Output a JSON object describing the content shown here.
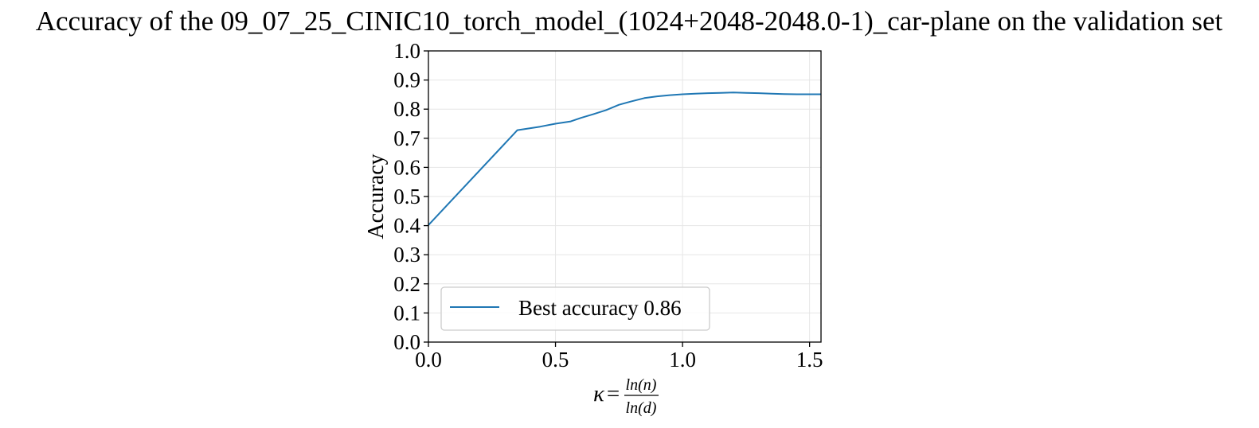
{
  "chart_data": {
    "type": "line",
    "title": "Accuracy of the 09_07_25_CINIC10_torch_model_(1024+2048-2048.0-1)_car-plane on the validation set",
    "xlabel": {
      "symbol": "κ",
      "equals": "=",
      "numerator": "ln(n)",
      "denominator": "ln(d)"
    },
    "ylabel": "Accuracy",
    "xlim": [
      0.0,
      1.545
    ],
    "ylim": [
      0.0,
      1.0
    ],
    "xticks": [
      0.0,
      0.5,
      1.0,
      1.5
    ],
    "xtick_labels": [
      "0.0",
      "0.5",
      "1.0",
      "1.5"
    ],
    "yticks": [
      0.0,
      0.1,
      0.2,
      0.3,
      0.4,
      0.5,
      0.6,
      0.7,
      0.8,
      0.9,
      1.0
    ],
    "ytick_labels": [
      "0.0",
      "0.1",
      "0.2",
      "0.3",
      "0.4",
      "0.5",
      "0.6",
      "0.7",
      "0.8",
      "0.9",
      "1.0"
    ],
    "grid": true,
    "legend_location": "lower-left",
    "series": [
      {
        "name": "Best accuracy 0.86",
        "color": "#1f77b4",
        "x": [
          0.0,
          0.35,
          0.44,
          0.5,
          0.56,
          0.6,
          0.65,
          0.7,
          0.75,
          0.8,
          0.85,
          0.9,
          0.95,
          1.0,
          1.05,
          1.1,
          1.15,
          1.2,
          1.25,
          1.3,
          1.35,
          1.4,
          1.45,
          1.5,
          1.545
        ],
        "y": [
          0.402,
          0.728,
          0.74,
          0.75,
          0.758,
          0.77,
          0.783,
          0.797,
          0.815,
          0.827,
          0.838,
          0.844,
          0.848,
          0.851,
          0.853,
          0.855,
          0.856,
          0.857,
          0.856,
          0.855,
          0.853,
          0.852,
          0.851,
          0.851,
          0.851
        ]
      }
    ]
  }
}
